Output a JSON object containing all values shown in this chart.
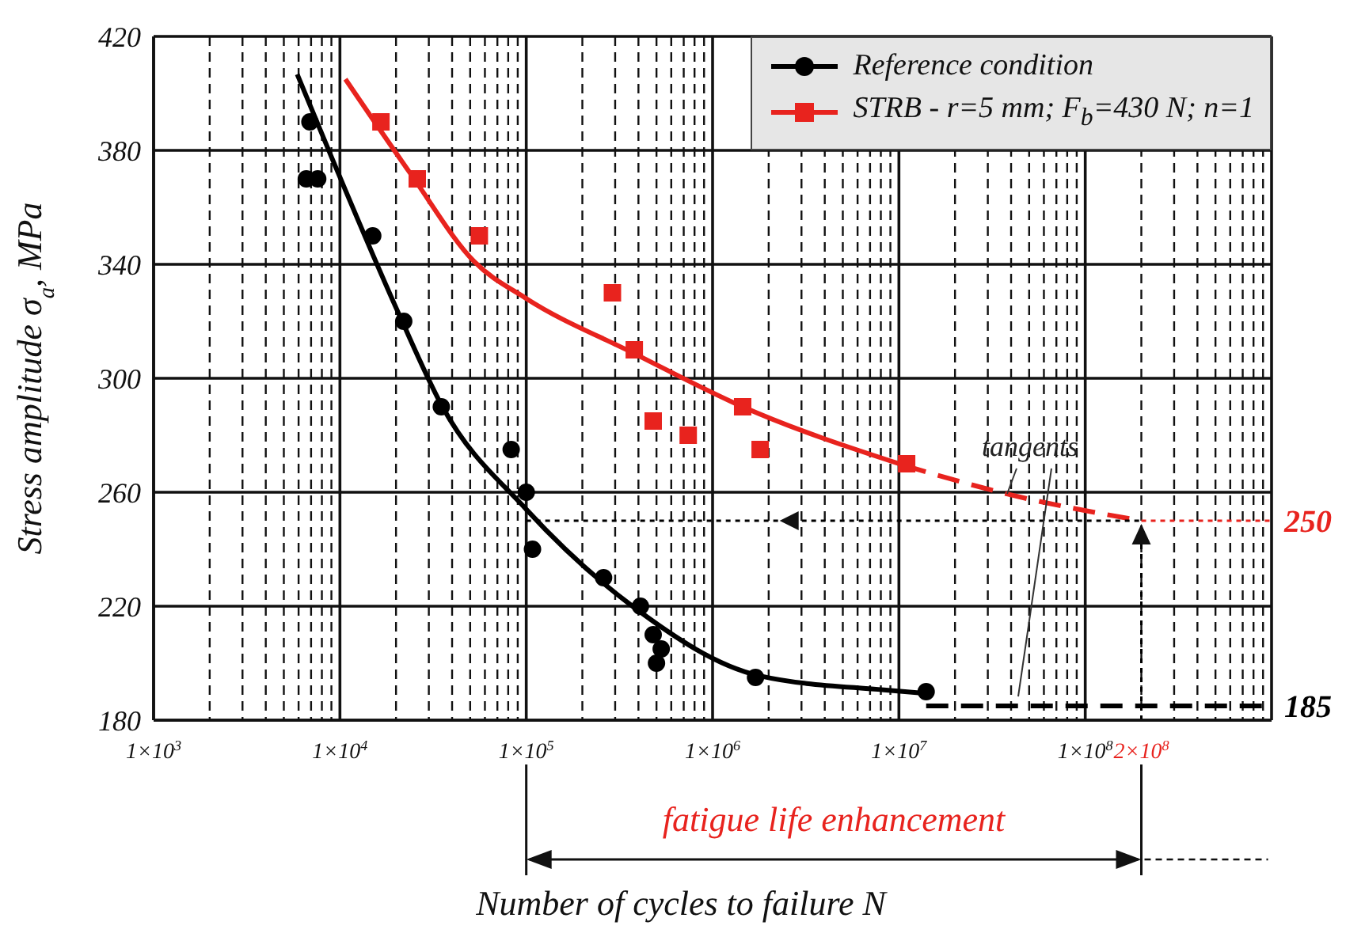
{
  "chart_data": {
    "type": "scatter",
    "xlabel": "Number of cycles to failure N",
    "ylabel": "Stress amplitude σ$_{a}$, MPa",
    "log": "x",
    "grid": true,
    "legend": "top right",
    "xlim": [
      1000,
      1000000000
    ],
    "ylim": [
      180,
      420
    ],
    "yticks": [
      180,
      220,
      260,
      300,
      340,
      380,
      420
    ],
    "xticks": [
      {
        "value": 1000,
        "label": "1×10$^{3}$"
      },
      {
        "value": 2000,
        "label": null
      },
      {
        "value": 3000,
        "label": null
      },
      {
        "value": 4000,
        "label": null
      },
      {
        "value": 5000,
        "label": null
      },
      {
        "value": 6000,
        "label": null
      },
      {
        "value": 7000,
        "label": null
      },
      {
        "value": 8000,
        "label": null
      },
      {
        "value": 9000,
        "label": null
      },
      {
        "value": 10000,
        "label": "1×10$^{4}$"
      },
      {
        "value": 20000,
        "label": null
      },
      {
        "value": 30000,
        "label": null
      },
      {
        "value": 40000,
        "label": null
      },
      {
        "value": 50000,
        "label": null
      },
      {
        "value": 60000,
        "label": null
      },
      {
        "value": 70000,
        "label": null
      },
      {
        "value": 80000,
        "label": null
      },
      {
        "value": 90000,
        "label": null
      },
      {
        "value": 100000,
        "label": "1×10$^{5}$"
      },
      {
        "value": 200000,
        "label": null
      },
      {
        "value": 300000,
        "label": null
      },
      {
        "value": 400000,
        "label": null
      },
      {
        "value": 500000,
        "label": null
      },
      {
        "value": 600000,
        "label": null
      },
      {
        "value": 700000,
        "label": null
      },
      {
        "value": 800000,
        "label": null
      },
      {
        "value": 900000,
        "label": null
      },
      {
        "value": 1000000,
        "label": "1×10$^{6}$"
      },
      {
        "value": 2000000,
        "label": null
      },
      {
        "value": 3000000,
        "label": null
      },
      {
        "value": 4000000,
        "label": null
      },
      {
        "value": 5000000,
        "label": null
      },
      {
        "value": 6000000,
        "label": null
      },
      {
        "value": 7000000,
        "label": null
      },
      {
        "value": 8000000,
        "label": null
      },
      {
        "value": 9000000,
        "label": null
      },
      {
        "value": 10000000,
        "label": "1×10$^{7}$"
      },
      {
        "value": 20000000,
        "label": null
      },
      {
        "value": 30000000,
        "label": null
      },
      {
        "value": 40000000,
        "label": null
      },
      {
        "value": 50000000,
        "label": null
      },
      {
        "value": 60000000,
        "label": null
      },
      {
        "value": 70000000,
        "label": null
      },
      {
        "value": 80000000,
        "label": null
      },
      {
        "value": 90000000,
        "label": null
      },
      {
        "value": 100000000,
        "label": "1×10$^{8}$"
      },
      {
        "value": 200000000,
        "label": "2×10$^{8}$"
      },
      {
        "value": 300000000,
        "label": null
      },
      {
        "value": 400000000,
        "label": null
      },
      {
        "value": 500000000,
        "label": null
      },
      {
        "value": 600000000,
        "label": null
      },
      {
        "value": 700000000,
        "label": null
      },
      {
        "value": 800000000,
        "label": null
      },
      {
        "value": 900000000,
        "label": null
      },
      {
        "value": 1000000000,
        "label": null
      }
    ],
    "series": [
      {
        "name": "Reference condition",
        "marker": "circle",
        "color": "#000000",
        "x": [
          6900,
          6600,
          7600,
          15000,
          22000,
          35000,
          83000,
          100000,
          108000,
          260000,
          410000,
          480000,
          530000,
          500000,
          1700000,
          14000000
        ],
        "values": [
          390,
          370,
          370,
          350,
          320,
          290,
          275,
          260,
          240,
          230,
          220,
          210,
          205,
          200,
          195,
          190
        ]
      },
      {
        "name": "STRB - r=5 mm;  F$_{b}$=430 N; n=1",
        "marker": "square",
        "color": "#e8231e",
        "x": [
          16600,
          26000,
          56000,
          290000,
          380000,
          480000,
          740000,
          1450000,
          1800000,
          11000000
        ],
        "values": [
          390,
          370,
          350,
          330,
          310,
          285,
          280,
          290,
          275,
          270
        ]
      },
      {
        "type": "line",
        "line_style": "solid",
        "color": "#000000",
        "x": [
          5900,
          9100,
          21000,
          35500,
          100000,
          371500,
          1780000,
          8300000,
          14000000
        ],
        "values": [
          406.7,
          377,
          321.7,
          290,
          254,
          220,
          195.6,
          190.6,
          189.4
        ]
      },
      {
        "type": "line",
        "line_style": "solid",
        "color": "#e8231e",
        "x": [
          10700,
          24000,
          52500,
          100000,
          371500,
          1450000,
          10700000
        ],
        "values": [
          405,
          371.7,
          341,
          328,
          309,
          290,
          269.4
        ]
      },
      {
        "type": "line",
        "line_style": "dashed",
        "color": "#e8231e",
        "x": [
          10700000,
          38000000,
          200000000
        ],
        "values": [
          269.4,
          259.4,
          250
        ]
      },
      {
        "type": "line",
        "line_style": "dashed",
        "color": "#000000",
        "x": [
          14000000,
          1000000000
        ],
        "values": [
          185,
          185
        ]
      },
      {
        "type": "line",
        "line_style": "dotted",
        "color": "#000000",
        "x": [
          100000,
          200000000
        ],
        "values": [
          250,
          250
        ]
      },
      {
        "type": "line",
        "line_style": "dotted",
        "color": "#e8231e",
        "x": [
          200000000,
          1000000000
        ],
        "values": [
          250,
          250
        ]
      },
      {
        "type": "line",
        "line_style": "dotted",
        "color": "#000000",
        "x": [
          200000000,
          200000000
        ],
        "values": [
          180,
          250
        ]
      }
    ],
    "annotations": [
      "tangents",
      "fatigue life enhancement",
      {
        "text": "250",
        "x": 1000000000,
        "y": 250
      },
      {
        "text": "185",
        "x": 1000000000,
        "y": 185
      }
    ]
  }
}
